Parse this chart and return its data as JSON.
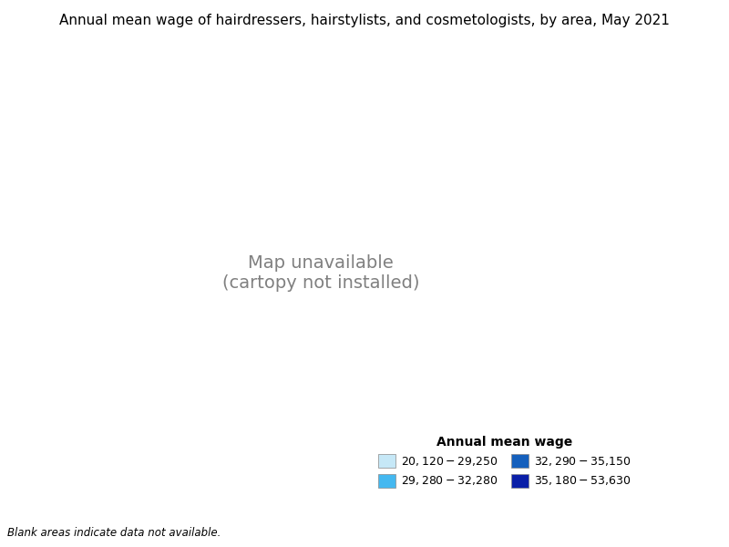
{
  "title": "Annual mean wage of hairdressers, hairstylists, and cosmetologists, by area, May 2021",
  "legend_title": "Annual mean wage",
  "legend_labels": [
    "$20,120 - $29,250",
    "$29,280 - $32,280",
    "$32,290 - $35,150",
    "$35,180 - $53,630"
  ],
  "legend_colors": [
    "#c6e8f7",
    "#44b8f0",
    "#1560bd",
    "#0a1fa8"
  ],
  "blank_note": "Blank areas indicate data not available.",
  "figsize": [
    8.0,
    6.0
  ],
  "dpi": 100,
  "title_fontsize": 11,
  "legend_title_fontsize": 10,
  "legend_fontsize": 9,
  "background_color": "#ffffff",
  "edge_color": "#000000",
  "edge_linewidth": 0.3
}
